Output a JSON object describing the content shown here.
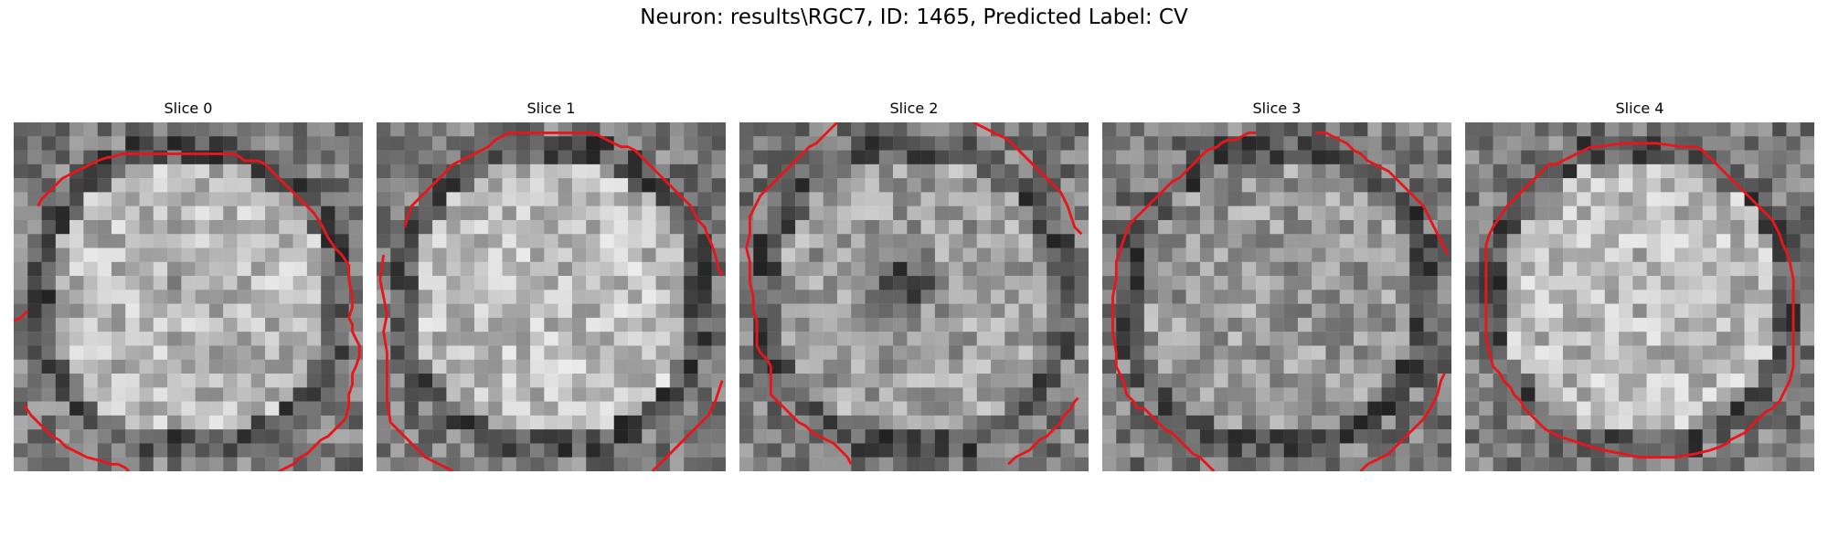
{
  "figure": {
    "title": "Neuron: results\\RGC7, ID: 1465, Predicted Label: CV"
  },
  "contour_color": "#e8161b",
  "panels": [
    {
      "title": "Slice 0",
      "seed": 11,
      "center_brightness": 0.72,
      "dark_blob": 0.25,
      "contour": [
        [
          7,
          24
        ],
        [
          8,
          22
        ],
        [
          10,
          20
        ],
        [
          12,
          18
        ],
        [
          14,
          16
        ],
        [
          16,
          15
        ],
        [
          18,
          14
        ],
        [
          20,
          13
        ],
        [
          22,
          12
        ],
        [
          24,
          11
        ],
        [
          27,
          10
        ],
        [
          28,
          10
        ],
        [
          31,
          9
        ],
        [
          33,
          9
        ],
        [
          38,
          9
        ],
        [
          42,
          9
        ],
        [
          50,
          9
        ],
        [
          56,
          9
        ],
        [
          60,
          9
        ],
        [
          63,
          9
        ],
        [
          65,
          10
        ],
        [
          66,
          11
        ],
        [
          70,
          11
        ],
        [
          72,
          12
        ],
        [
          74,
          14
        ],
        [
          76,
          16
        ],
        [
          78,
          18
        ],
        [
          80,
          20
        ],
        [
          82,
          22
        ],
        [
          84,
          24
        ],
        [
          86,
          26
        ],
        [
          88,
          29
        ],
        [
          90,
          33
        ],
        [
          92,
          36
        ],
        [
          94,
          38
        ],
        [
          96,
          41
        ],
        [
          96,
          45
        ],
        [
          97,
          50
        ],
        [
          97,
          53
        ],
        [
          96,
          56
        ],
        [
          97,
          58
        ],
        [
          97,
          60
        ],
        [
          98,
          62
        ],
        [
          99,
          64
        ],
        [
          99,
          67
        ],
        [
          98,
          70
        ],
        [
          97,
          72
        ],
        [
          97,
          75
        ],
        [
          96,
          78
        ],
        [
          96,
          81
        ],
        [
          95,
          85
        ],
        [
          94,
          86
        ],
        [
          93,
          87
        ],
        [
          91,
          89
        ],
        [
          90,
          90
        ],
        [
          88,
          91
        ],
        [
          86,
          93
        ],
        [
          84,
          95
        ],
        [
          82,
          96
        ],
        [
          80,
          98
        ],
        [
          78,
          99
        ],
        [
          76,
          100
        ]
      ],
      "contour2": [
        [
          3,
          81
        ],
        [
          5,
          84
        ],
        [
          7,
          86
        ],
        [
          9,
          88
        ],
        [
          11,
          90
        ],
        [
          13,
          91
        ],
        [
          15,
          93
        ],
        [
          17,
          94
        ],
        [
          19,
          95
        ],
        [
          21,
          96
        ],
        [
          25,
          97
        ],
        [
          28,
          98
        ],
        [
          30,
          98
        ],
        [
          32,
          99
        ],
        [
          33,
          100
        ]
      ],
      "contour3": [
        [
          0,
          57
        ],
        [
          2,
          56
        ],
        [
          3,
          55
        ],
        [
          4,
          54
        ]
      ]
    },
    {
      "title": "Slice 1",
      "seed": 27,
      "center_brightness": 0.74,
      "dark_blob": 0.1,
      "contour": [
        [
          8,
          30
        ],
        [
          9,
          27
        ],
        [
          10,
          24
        ],
        [
          12,
          22
        ],
        [
          14,
          20
        ],
        [
          16,
          18
        ],
        [
          18,
          16
        ],
        [
          20,
          14
        ],
        [
          22,
          12
        ],
        [
          24,
          11
        ],
        [
          26,
          10
        ],
        [
          28,
          9
        ],
        [
          30,
          8
        ],
        [
          32,
          7
        ],
        [
          33,
          6
        ],
        [
          34,
          5
        ],
        [
          36,
          4
        ],
        [
          38,
          3
        ],
        [
          40,
          3
        ],
        [
          50,
          3
        ],
        [
          58,
          3
        ],
        [
          62,
          3
        ],
        [
          64,
          4
        ],
        [
          66,
          5
        ],
        [
          68,
          6
        ],
        [
          70,
          7
        ],
        [
          72,
          7
        ],
        [
          74,
          8
        ],
        [
          76,
          10
        ],
        [
          78,
          12
        ],
        [
          80,
          14
        ],
        [
          82,
          16
        ],
        [
          84,
          18
        ],
        [
          86,
          20
        ],
        [
          88,
          22
        ],
        [
          90,
          24
        ],
        [
          91,
          26
        ],
        [
          92,
          28
        ],
        [
          94,
          30
        ],
        [
          95,
          33
        ],
        [
          96,
          35
        ],
        [
          97,
          38
        ],
        [
          98,
          42
        ],
        [
          99,
          44
        ]
      ],
      "contour2": [
        [
          2,
          38
        ],
        [
          1,
          45
        ],
        [
          2,
          50
        ],
        [
          3,
          55
        ],
        [
          2,
          60
        ],
        [
          3,
          66
        ],
        [
          3,
          74
        ],
        [
          3,
          80
        ],
        [
          4,
          86
        ],
        [
          6,
          88
        ],
        [
          8,
          90
        ],
        [
          10,
          92
        ],
        [
          12,
          94
        ],
        [
          14,
          96
        ],
        [
          16,
          97
        ],
        [
          18,
          98
        ],
        [
          20,
          99
        ],
        [
          22,
          100
        ]
      ],
      "contour3": [
        [
          79,
          100
        ],
        [
          81,
          98
        ],
        [
          83,
          96
        ],
        [
          85,
          94
        ],
        [
          87,
          92
        ],
        [
          89,
          90
        ],
        [
          91,
          88
        ],
        [
          93,
          86
        ],
        [
          95,
          84
        ],
        [
          97,
          80
        ],
        [
          98,
          77
        ],
        [
          99,
          74
        ]
      ]
    },
    {
      "title": "Slice 2",
      "seed": 43,
      "center_brightness": 0.62,
      "dark_blob": 0.85,
      "contour": [
        [
          28,
          0
        ],
        [
          26,
          2
        ],
        [
          24,
          4
        ],
        [
          22,
          6
        ],
        [
          20,
          7
        ],
        [
          18,
          9
        ],
        [
          16,
          11
        ],
        [
          14,
          13
        ],
        [
          12,
          15
        ],
        [
          10,
          17
        ],
        [
          8,
          19
        ],
        [
          6,
          21
        ],
        [
          5,
          23
        ],
        [
          4,
          25
        ],
        [
          3,
          27
        ],
        [
          3,
          32
        ],
        [
          2,
          36
        ],
        [
          3,
          40
        ],
        [
          3,
          46
        ],
        [
          4,
          50
        ],
        [
          4,
          54
        ],
        [
          5,
          57
        ],
        [
          5,
          60
        ],
        [
          5,
          64
        ],
        [
          6,
          66
        ],
        [
          8,
          68
        ],
        [
          9,
          70
        ],
        [
          9,
          72
        ],
        [
          9,
          75
        ],
        [
          9,
          78
        ],
        [
          11,
          80
        ],
        [
          13,
          82
        ],
        [
          15,
          84
        ],
        [
          17,
          86
        ],
        [
          19,
          87
        ],
        [
          21,
          89
        ],
        [
          23,
          90
        ],
        [
          25,
          91
        ],
        [
          27,
          92
        ],
        [
          29,
          94
        ],
        [
          31,
          96
        ],
        [
          32,
          98
        ]
      ],
      "contour2": [
        [
          67,
          0
        ],
        [
          69,
          1
        ],
        [
          71,
          2
        ],
        [
          73,
          3
        ],
        [
          75,
          4
        ],
        [
          77,
          5
        ],
        [
          78,
          6
        ],
        [
          80,
          8
        ],
        [
          82,
          10
        ],
        [
          84,
          12
        ],
        [
          86,
          14
        ],
        [
          88,
          16
        ],
        [
          90,
          18
        ],
        [
          92,
          20
        ],
        [
          93,
          22
        ],
        [
          94,
          24
        ],
        [
          95,
          27
        ],
        [
          96,
          30
        ],
        [
          98,
          32
        ]
      ],
      "contour3": [
        [
          77,
          98
        ],
        [
          78,
          97
        ],
        [
          79,
          96
        ],
        [
          81,
          95
        ],
        [
          83,
          94
        ],
        [
          85,
          92
        ],
        [
          86,
          91
        ],
        [
          88,
          90
        ],
        [
          90,
          88
        ],
        [
          92,
          86
        ],
        [
          93,
          84
        ],
        [
          95,
          82
        ],
        [
          96,
          80
        ],
        [
          97,
          79
        ]
      ]
    },
    {
      "title": "Slice 3",
      "seed": 59,
      "center_brightness": 0.6,
      "dark_blob": 0.0,
      "contour": [
        [
          44,
          3
        ],
        [
          42,
          3
        ],
        [
          40,
          4
        ],
        [
          38,
          5
        ],
        [
          36,
          5
        ],
        [
          34,
          6
        ],
        [
          33,
          7
        ],
        [
          30,
          8
        ],
        [
          28,
          10
        ],
        [
          26,
          12
        ],
        [
          24,
          14
        ],
        [
          22,
          16
        ],
        [
          20,
          17
        ],
        [
          18,
          19
        ],
        [
          16,
          21
        ],
        [
          14,
          23
        ],
        [
          12,
          25
        ],
        [
          10,
          27
        ],
        [
          8,
          29
        ],
        [
          7,
          31
        ],
        [
          6,
          34
        ],
        [
          5,
          37
        ],
        [
          4,
          40
        ],
        [
          4,
          45
        ],
        [
          3,
          50
        ],
        [
          3,
          55
        ],
        [
          3,
          60
        ],
        [
          4,
          66
        ],
        [
          4,
          70
        ],
        [
          6,
          74
        ],
        [
          7,
          78
        ],
        [
          9,
          80
        ],
        [
          10,
          82
        ],
        [
          12,
          82
        ],
        [
          14,
          84
        ],
        [
          16,
          86
        ],
        [
          18,
          88
        ],
        [
          20,
          89
        ],
        [
          22,
          91
        ],
        [
          24,
          93
        ],
        [
          26,
          95
        ],
        [
          28,
          96
        ],
        [
          30,
          98
        ],
        [
          32,
          100
        ]
      ],
      "contour2": [
        [
          61,
          3
        ],
        [
          64,
          3
        ],
        [
          66,
          4
        ],
        [
          68,
          5
        ],
        [
          70,
          6
        ],
        [
          72,
          8
        ],
        [
          74,
          9
        ],
        [
          76,
          11
        ],
        [
          78,
          12
        ],
        [
          80,
          13
        ],
        [
          82,
          14
        ],
        [
          84,
          16
        ],
        [
          86,
          18
        ],
        [
          88,
          20
        ],
        [
          90,
          22
        ],
        [
          92,
          24
        ],
        [
          94,
          28
        ],
        [
          96,
          32
        ],
        [
          98,
          36
        ],
        [
          99,
          38
        ]
      ],
      "contour3": [
        [
          74,
          100
        ],
        [
          76,
          98
        ],
        [
          78,
          97
        ],
        [
          80,
          96
        ],
        [
          82,
          95
        ],
        [
          84,
          93
        ],
        [
          86,
          91
        ],
        [
          88,
          89
        ],
        [
          90,
          87
        ],
        [
          92,
          85
        ],
        [
          94,
          82
        ],
        [
          96,
          78
        ],
        [
          97,
          74
        ],
        [
          98,
          72
        ]
      ]
    },
    {
      "title": "Slice 4",
      "seed": 77,
      "center_brightness": 0.73,
      "dark_blob": 0.05,
      "contour": [
        [
          36,
          7
        ],
        [
          34,
          8
        ],
        [
          32,
          9
        ],
        [
          30,
          10
        ],
        [
          28,
          11
        ],
        [
          26,
          12
        ],
        [
          24,
          12
        ],
        [
          22,
          14
        ],
        [
          20,
          16
        ],
        [
          18,
          18
        ],
        [
          16,
          20
        ],
        [
          14,
          22
        ],
        [
          12,
          24
        ],
        [
          10,
          27
        ],
        [
          8,
          30
        ],
        [
          7,
          32
        ],
        [
          6,
          35
        ],
        [
          6,
          40
        ],
        [
          6,
          48
        ],
        [
          6,
          56
        ],
        [
          6,
          62
        ],
        [
          7,
          66
        ],
        [
          8,
          70
        ],
        [
          10,
          72
        ],
        [
          11,
          74
        ],
        [
          13,
          76
        ],
        [
          14,
          78
        ],
        [
          16,
          80
        ],
        [
          17,
          82
        ],
        [
          19,
          84
        ],
        [
          21,
          86
        ],
        [
          23,
          88
        ],
        [
          25,
          89
        ],
        [
          27,
          90
        ],
        [
          30,
          91
        ],
        [
          33,
          92
        ],
        [
          36,
          93
        ],
        [
          40,
          94
        ],
        [
          50,
          96
        ],
        [
          60,
          96
        ],
        [
          66,
          95
        ],
        [
          70,
          94
        ],
        [
          73,
          93
        ],
        [
          75,
          92
        ],
        [
          76,
          91
        ],
        [
          78,
          90
        ],
        [
          80,
          89
        ],
        [
          82,
          87
        ],
        [
          84,
          85
        ],
        [
          86,
          83
        ],
        [
          88,
          82
        ],
        [
          90,
          80
        ],
        [
          92,
          76
        ],
        [
          93,
          74
        ],
        [
          94,
          70
        ],
        [
          94,
          66
        ],
        [
          94,
          55
        ],
        [
          94,
          45
        ],
        [
          93,
          40
        ],
        [
          92,
          37
        ],
        [
          91,
          35
        ],
        [
          90,
          32
        ],
        [
          89,
          30
        ],
        [
          88,
          28
        ],
        [
          86,
          26
        ],
        [
          84,
          24
        ],
        [
          82,
          22
        ],
        [
          80,
          20
        ],
        [
          78,
          18
        ],
        [
          76,
          16
        ],
        [
          74,
          14
        ],
        [
          72,
          12
        ],
        [
          70,
          10
        ],
        [
          68,
          8
        ],
        [
          66,
          7
        ],
        [
          62,
          7
        ],
        [
          55,
          6
        ],
        [
          45,
          6
        ],
        [
          38,
          7
        ],
        [
          36,
          7
        ]
      ],
      "contour2": [],
      "contour3": []
    }
  ]
}
